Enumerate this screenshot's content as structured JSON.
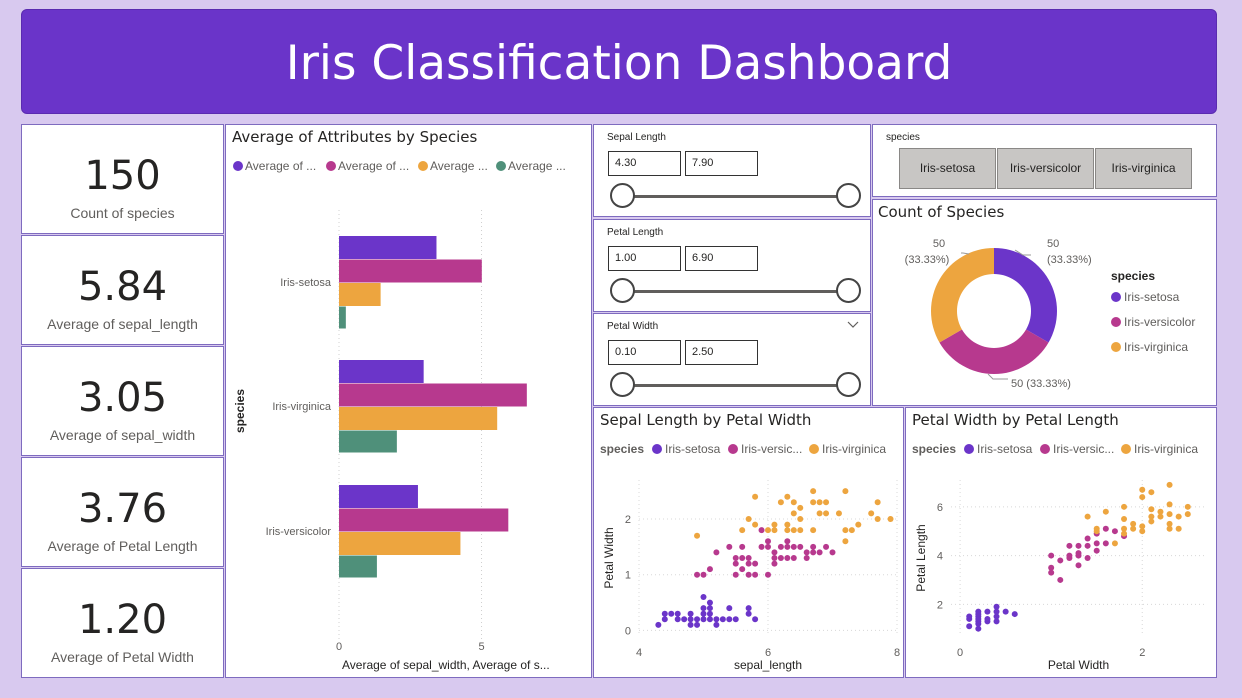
{
  "header": {
    "title": "Iris Classification Dashboard"
  },
  "colors": {
    "setosa": "#6b35c9",
    "versicolor": "#b7398e",
    "virginica": "#eda53f",
    "petal_width": "#4f907a"
  },
  "kpis": [
    {
      "value": "150",
      "label": "Count of species"
    },
    {
      "value": "5.84",
      "label": "Average of sepal_length"
    },
    {
      "value": "3.05",
      "label": "Average of sepal_width"
    },
    {
      "value": "3.76",
      "label": "Average of Petal Length"
    },
    {
      "value": "1.20",
      "label": "Average of Petal Width"
    }
  ],
  "slicers": [
    {
      "title": "Sepal Length",
      "min": "4.30",
      "max": "7.90"
    },
    {
      "title": "Petal Length",
      "min": "1.00",
      "max": "6.90"
    },
    {
      "title": "Petal Width",
      "min": "0.10",
      "max": "2.50"
    }
  ],
  "species_slicer": {
    "title": "species",
    "buttons": [
      "Iris-setosa",
      "Iris-versicolor",
      "Iris-virginica"
    ]
  },
  "chart_data": [
    {
      "type": "bar",
      "orientation": "horizontal",
      "title": "Average of Attributes by Species",
      "legend_labels": [
        "Average of ...",
        "Average of ...",
        "Average ...",
        "Average ..."
      ],
      "categories": [
        "Iris-setosa",
        "Iris-virginica",
        "Iris-versicolor"
      ],
      "series": [
        {
          "values": [
            3.42,
            2.97,
            2.77
          ]
        },
        {
          "values": [
            5.01,
            6.59,
            5.94
          ]
        },
        {
          "values": [
            1.46,
            5.55,
            4.26
          ]
        },
        {
          "values": [
            0.24,
            2.03,
            1.33
          ]
        }
      ],
      "xlabel": "Average of sepal_width, Average of s...",
      "ylabel": "species",
      "xticks": [
        "0",
        "5"
      ],
      "xlim": [
        0,
        8.35
      ],
      "grid": true,
      "legend_position": "top"
    },
    {
      "type": "pie",
      "donut": true,
      "title": "Count of Species",
      "legend_title": "species",
      "slices": [
        {
          "label": "Iris-setosa",
          "value": 50,
          "data_label": "50",
          "data_pct": "(33.33%)"
        },
        {
          "label": "Iris-versicolor",
          "value": 50,
          "data_label": "50 (33.33%)"
        },
        {
          "label": "Iris-virginica",
          "value": 50,
          "data_label": "50",
          "data_pct": "(33.33%)"
        }
      ],
      "legend_position": "right"
    },
    {
      "type": "scatter",
      "title": "Sepal Length by Petal Width",
      "legend_title": "species",
      "legend_labels": [
        "Iris-setosa",
        "Iris-versic...",
        "Iris-virginica"
      ],
      "xlabel": "sepal_length",
      "ylabel": "Petal Width",
      "xlim": [
        4,
        8
      ],
      "ylim": [
        -0.1,
        2.7
      ],
      "xticks": [
        "4",
        "6",
        "8"
      ],
      "yticks": [
        "0",
        "1",
        "2"
      ],
      "series": [
        {
          "points": [
            [
              4.3,
              0.1
            ],
            [
              4.4,
              0.2
            ],
            [
              4.4,
              0.3
            ],
            [
              4.5,
              0.3
            ],
            [
              4.6,
              0.2
            ],
            [
              4.6,
              0.3
            ],
            [
              4.7,
              0.2
            ],
            [
              4.8,
              0.1
            ],
            [
              4.8,
              0.2
            ],
            [
              4.8,
              0.3
            ],
            [
              4.9,
              0.1
            ],
            [
              4.9,
              0.2
            ],
            [
              5.0,
              0.2
            ],
            [
              5.0,
              0.3
            ],
            [
              5.0,
              0.4
            ],
            [
              5.0,
              0.6
            ],
            [
              5.1,
              0.2
            ],
            [
              5.1,
              0.3
            ],
            [
              5.1,
              0.4
            ],
            [
              5.1,
              0.5
            ],
            [
              5.2,
              0.1
            ],
            [
              5.2,
              0.2
            ],
            [
              5.3,
              0.2
            ],
            [
              5.4,
              0.2
            ],
            [
              5.4,
              0.4
            ],
            [
              5.5,
              0.2
            ],
            [
              5.7,
              0.3
            ],
            [
              5.7,
              0.4
            ],
            [
              5.8,
              0.2
            ]
          ]
        },
        {
          "points": [
            [
              4.9,
              1.0
            ],
            [
              5.0,
              1.0
            ],
            [
              5.1,
              1.1
            ],
            [
              5.2,
              1.4
            ],
            [
              5.4,
              1.5
            ],
            [
              5.5,
              1.0
            ],
            [
              5.5,
              1.2
            ],
            [
              5.5,
              1.3
            ],
            [
              5.6,
              1.1
            ],
            [
              5.6,
              1.3
            ],
            [
              5.6,
              1.5
            ],
            [
              5.7,
              1.0
            ],
            [
              5.7,
              1.2
            ],
            [
              5.7,
              1.3
            ],
            [
              5.8,
              1.0
            ],
            [
              5.8,
              1.2
            ],
            [
              5.9,
              1.5
            ],
            [
              5.9,
              1.8
            ],
            [
              6.0,
              1.0
            ],
            [
              6.0,
              1.5
            ],
            [
              6.0,
              1.6
            ],
            [
              6.1,
              1.2
            ],
            [
              6.1,
              1.3
            ],
            [
              6.1,
              1.4
            ],
            [
              6.2,
              1.3
            ],
            [
              6.2,
              1.5
            ],
            [
              6.3,
              1.3
            ],
            [
              6.3,
              1.5
            ],
            [
              6.3,
              1.6
            ],
            [
              6.4,
              1.3
            ],
            [
              6.4,
              1.5
            ],
            [
              6.5,
              1.5
            ],
            [
              6.6,
              1.3
            ],
            [
              6.6,
              1.4
            ],
            [
              6.7,
              1.4
            ],
            [
              6.7,
              1.5
            ],
            [
              6.8,
              1.4
            ],
            [
              6.9,
              1.5
            ],
            [
              7.0,
              1.4
            ]
          ]
        },
        {
          "points": [
            [
              4.9,
              1.7
            ],
            [
              5.6,
              1.8
            ],
            [
              5.7,
              2.0
            ],
            [
              5.8,
              1.9
            ],
            [
              5.8,
              2.4
            ],
            [
              6.0,
              1.8
            ],
            [
              6.1,
              1.8
            ],
            [
              6.1,
              1.9
            ],
            [
              6.2,
              2.3
            ],
            [
              6.3,
              1.8
            ],
            [
              6.3,
              1.9
            ],
            [
              6.3,
              2.4
            ],
            [
              6.4,
              1.8
            ],
            [
              6.4,
              2.1
            ],
            [
              6.4,
              2.3
            ],
            [
              6.5,
              1.8
            ],
            [
              6.5,
              2.0
            ],
            [
              6.5,
              2.2
            ],
            [
              6.7,
              1.8
            ],
            [
              6.7,
              2.3
            ],
            [
              6.7,
              2.5
            ],
            [
              6.8,
              2.1
            ],
            [
              6.8,
              2.3
            ],
            [
              6.9,
              2.1
            ],
            [
              6.9,
              2.3
            ],
            [
              7.1,
              2.1
            ],
            [
              7.2,
              1.6
            ],
            [
              7.2,
              1.8
            ],
            [
              7.2,
              2.5
            ],
            [
              7.3,
              1.8
            ],
            [
              7.4,
              1.9
            ],
            [
              7.6,
              2.1
            ],
            [
              7.7,
              2.0
            ],
            [
              7.7,
              2.3
            ],
            [
              7.9,
              2.0
            ]
          ]
        }
      ]
    },
    {
      "type": "scatter",
      "title": "Petal Width by Petal Length",
      "legend_title": "species",
      "legend_labels": [
        "Iris-setosa",
        "Iris-versic...",
        "Iris-virginica"
      ],
      "xlabel": "Petal Width",
      "ylabel": "Petal Length",
      "xlim": [
        -0.1,
        2.7
      ],
      "ylim": [
        0.7,
        7.1
      ],
      "xticks": [
        "0",
        "2"
      ],
      "yticks": [
        "2",
        "4",
        "6"
      ],
      "series": [
        {
          "points": [
            [
              0.1,
              1.1
            ],
            [
              0.1,
              1.4
            ],
            [
              0.1,
              1.5
            ],
            [
              0.2,
              1.0
            ],
            [
              0.2,
              1.2
            ],
            [
              0.2,
              1.3
            ],
            [
              0.2,
              1.4
            ],
            [
              0.2,
              1.5
            ],
            [
              0.2,
              1.6
            ],
            [
              0.2,
              1.7
            ],
            [
              0.3,
              1.3
            ],
            [
              0.3,
              1.4
            ],
            [
              0.3,
              1.7
            ],
            [
              0.4,
              1.3
            ],
            [
              0.4,
              1.5
            ],
            [
              0.4,
              1.7
            ],
            [
              0.4,
              1.9
            ],
            [
              0.5,
              1.7
            ],
            [
              0.6,
              1.6
            ]
          ]
        },
        {
          "points": [
            [
              1.0,
              3.3
            ],
            [
              1.0,
              3.5
            ],
            [
              1.0,
              4.0
            ],
            [
              1.1,
              3.0
            ],
            [
              1.1,
              3.8
            ],
            [
              1.2,
              3.9
            ],
            [
              1.2,
              4.0
            ],
            [
              1.2,
              4.4
            ],
            [
              1.3,
              3.6
            ],
            [
              1.3,
              4.0
            ],
            [
              1.3,
              4.1
            ],
            [
              1.3,
              4.4
            ],
            [
              1.4,
              3.9
            ],
            [
              1.4,
              4.4
            ],
            [
              1.4,
              4.7
            ],
            [
              1.5,
              4.2
            ],
            [
              1.5,
              4.5
            ],
            [
              1.5,
              4.9
            ],
            [
              1.6,
              4.5
            ],
            [
              1.6,
              5.1
            ],
            [
              1.7,
              5.0
            ],
            [
              1.8,
              4.8
            ]
          ]
        },
        {
          "points": [
            [
              1.4,
              5.6
            ],
            [
              1.5,
              5.0
            ],
            [
              1.5,
              5.1
            ],
            [
              1.6,
              5.8
            ],
            [
              1.7,
              4.5
            ],
            [
              1.8,
              4.9
            ],
            [
              1.8,
              5.1
            ],
            [
              1.8,
              5.5
            ],
            [
              1.8,
              6.0
            ],
            [
              1.9,
              5.1
            ],
            [
              1.9,
              5.3
            ],
            [
              2.0,
              5.0
            ],
            [
              2.0,
              5.2
            ],
            [
              2.0,
              6.4
            ],
            [
              2.0,
              6.7
            ],
            [
              2.1,
              5.4
            ],
            [
              2.1,
              5.6
            ],
            [
              2.1,
              5.9
            ],
            [
              2.1,
              6.6
            ],
            [
              2.2,
              5.6
            ],
            [
              2.2,
              5.8
            ],
            [
              2.3,
              5.1
            ],
            [
              2.3,
              5.3
            ],
            [
              2.3,
              5.7
            ],
            [
              2.3,
              6.1
            ],
            [
              2.3,
              6.9
            ],
            [
              2.4,
              5.1
            ],
            [
              2.4,
              5.6
            ],
            [
              2.5,
              5.7
            ],
            [
              2.5,
              6.0
            ]
          ]
        }
      ]
    }
  ]
}
